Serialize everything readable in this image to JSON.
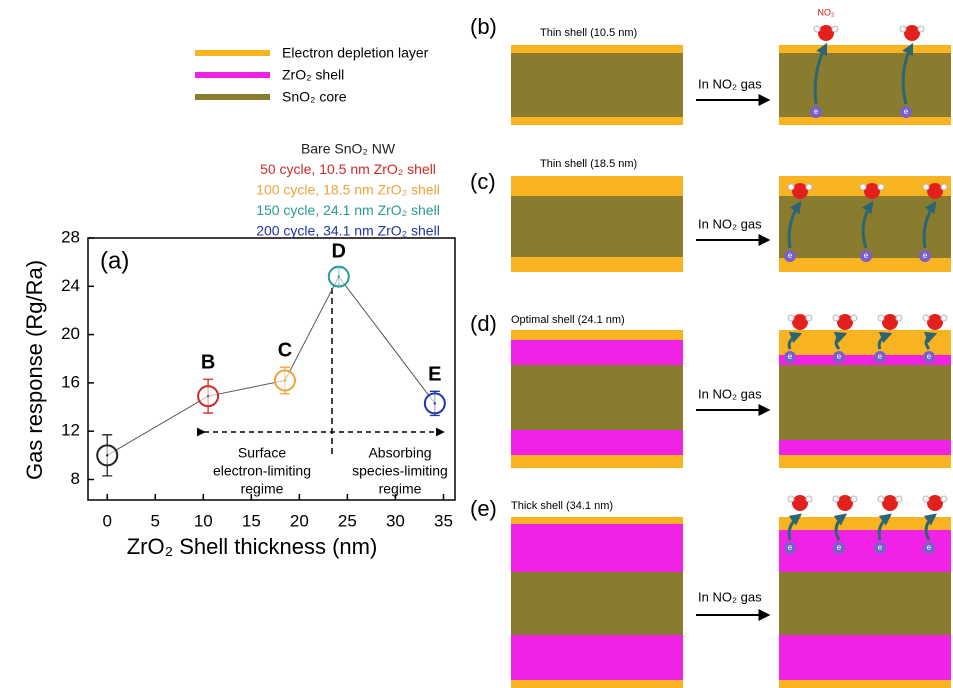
{
  "chart_data": {
    "type": "scatter",
    "panel_label": "(a)",
    "x_label": "ZrO₂ Shell thickness (nm)",
    "y_label": "Gas response (Rg/Ra)",
    "xlim": [
      -2,
      36.2
    ],
    "ylim": [
      6.3,
      28
    ],
    "xticks": [
      0,
      5,
      10,
      15,
      20,
      25,
      30,
      35
    ],
    "yticks": [
      8,
      12,
      16,
      20,
      24,
      28
    ],
    "series": [
      {
        "name": "Bare SnO₂ NW",
        "color": "#222222",
        "x": [
          0
        ],
        "values": [
          10
        ],
        "errors": [
          1.7
        ]
      },
      {
        "name": "50 cycle, 10.5 nm ZrO₂ shell",
        "color": "#d02a2a",
        "x": [
          10.5
        ],
        "values": [
          14.9
        ],
        "errors": [
          1.4
        ],
        "labels": [
          "B"
        ]
      },
      {
        "name": "100 cycle, 18.5 nm ZrO₂ shell",
        "color": "#eda43a",
        "x": [
          18.5
        ],
        "values": [
          16.2
        ],
        "errors": [
          1.1
        ],
        "labels": [
          "C"
        ]
      },
      {
        "name": "150 cycle, 24.1 nm ZrO₂ shell",
        "color": "#2a9a92",
        "x": [
          24.1
        ],
        "values": [
          24.8
        ],
        "errors": [
          0.7
        ],
        "labels": [
          "D"
        ]
      },
      {
        "name": "200 cycle, 34.1 nm ZrO₂ shell",
        "color": "#1f36a6",
        "x": [
          34.1
        ],
        "values": [
          14.3
        ],
        "errors": [
          1.0
        ],
        "labels": [
          "E"
        ]
      }
    ],
    "annotations": [
      [
        "Surface",
        "electron-limiting",
        "regime"
      ],
      [
        "Absorbing",
        "species-limiting",
        "regime"
      ]
    ]
  },
  "legend": {
    "items": [
      {
        "label": "Electron depletion layer",
        "color": "#f7b420"
      },
      {
        "label": "ZrO₂ shell",
        "color": "#ef22e6"
      },
      {
        "label": "SnO₂ core",
        "color": "#8a7c2e"
      }
    ]
  },
  "panels": [
    {
      "label": "(b)",
      "title": "Thin shell (10.5 nm)",
      "gas": "In NO₂ gas",
      "molecule": "NO₂"
    },
    {
      "label": "(c)",
      "title": "Thin shell (18.5 nm)",
      "gas": "In NO₂ gas"
    },
    {
      "label": "(d)",
      "title": "Optimal shell (24.1 nm)",
      "gas": "In NO₂ gas"
    },
    {
      "label": "(e)",
      "title": "Thick shell (34.1 nm)",
      "gas": "In NO₂ gas"
    }
  ],
  "electron": "e"
}
